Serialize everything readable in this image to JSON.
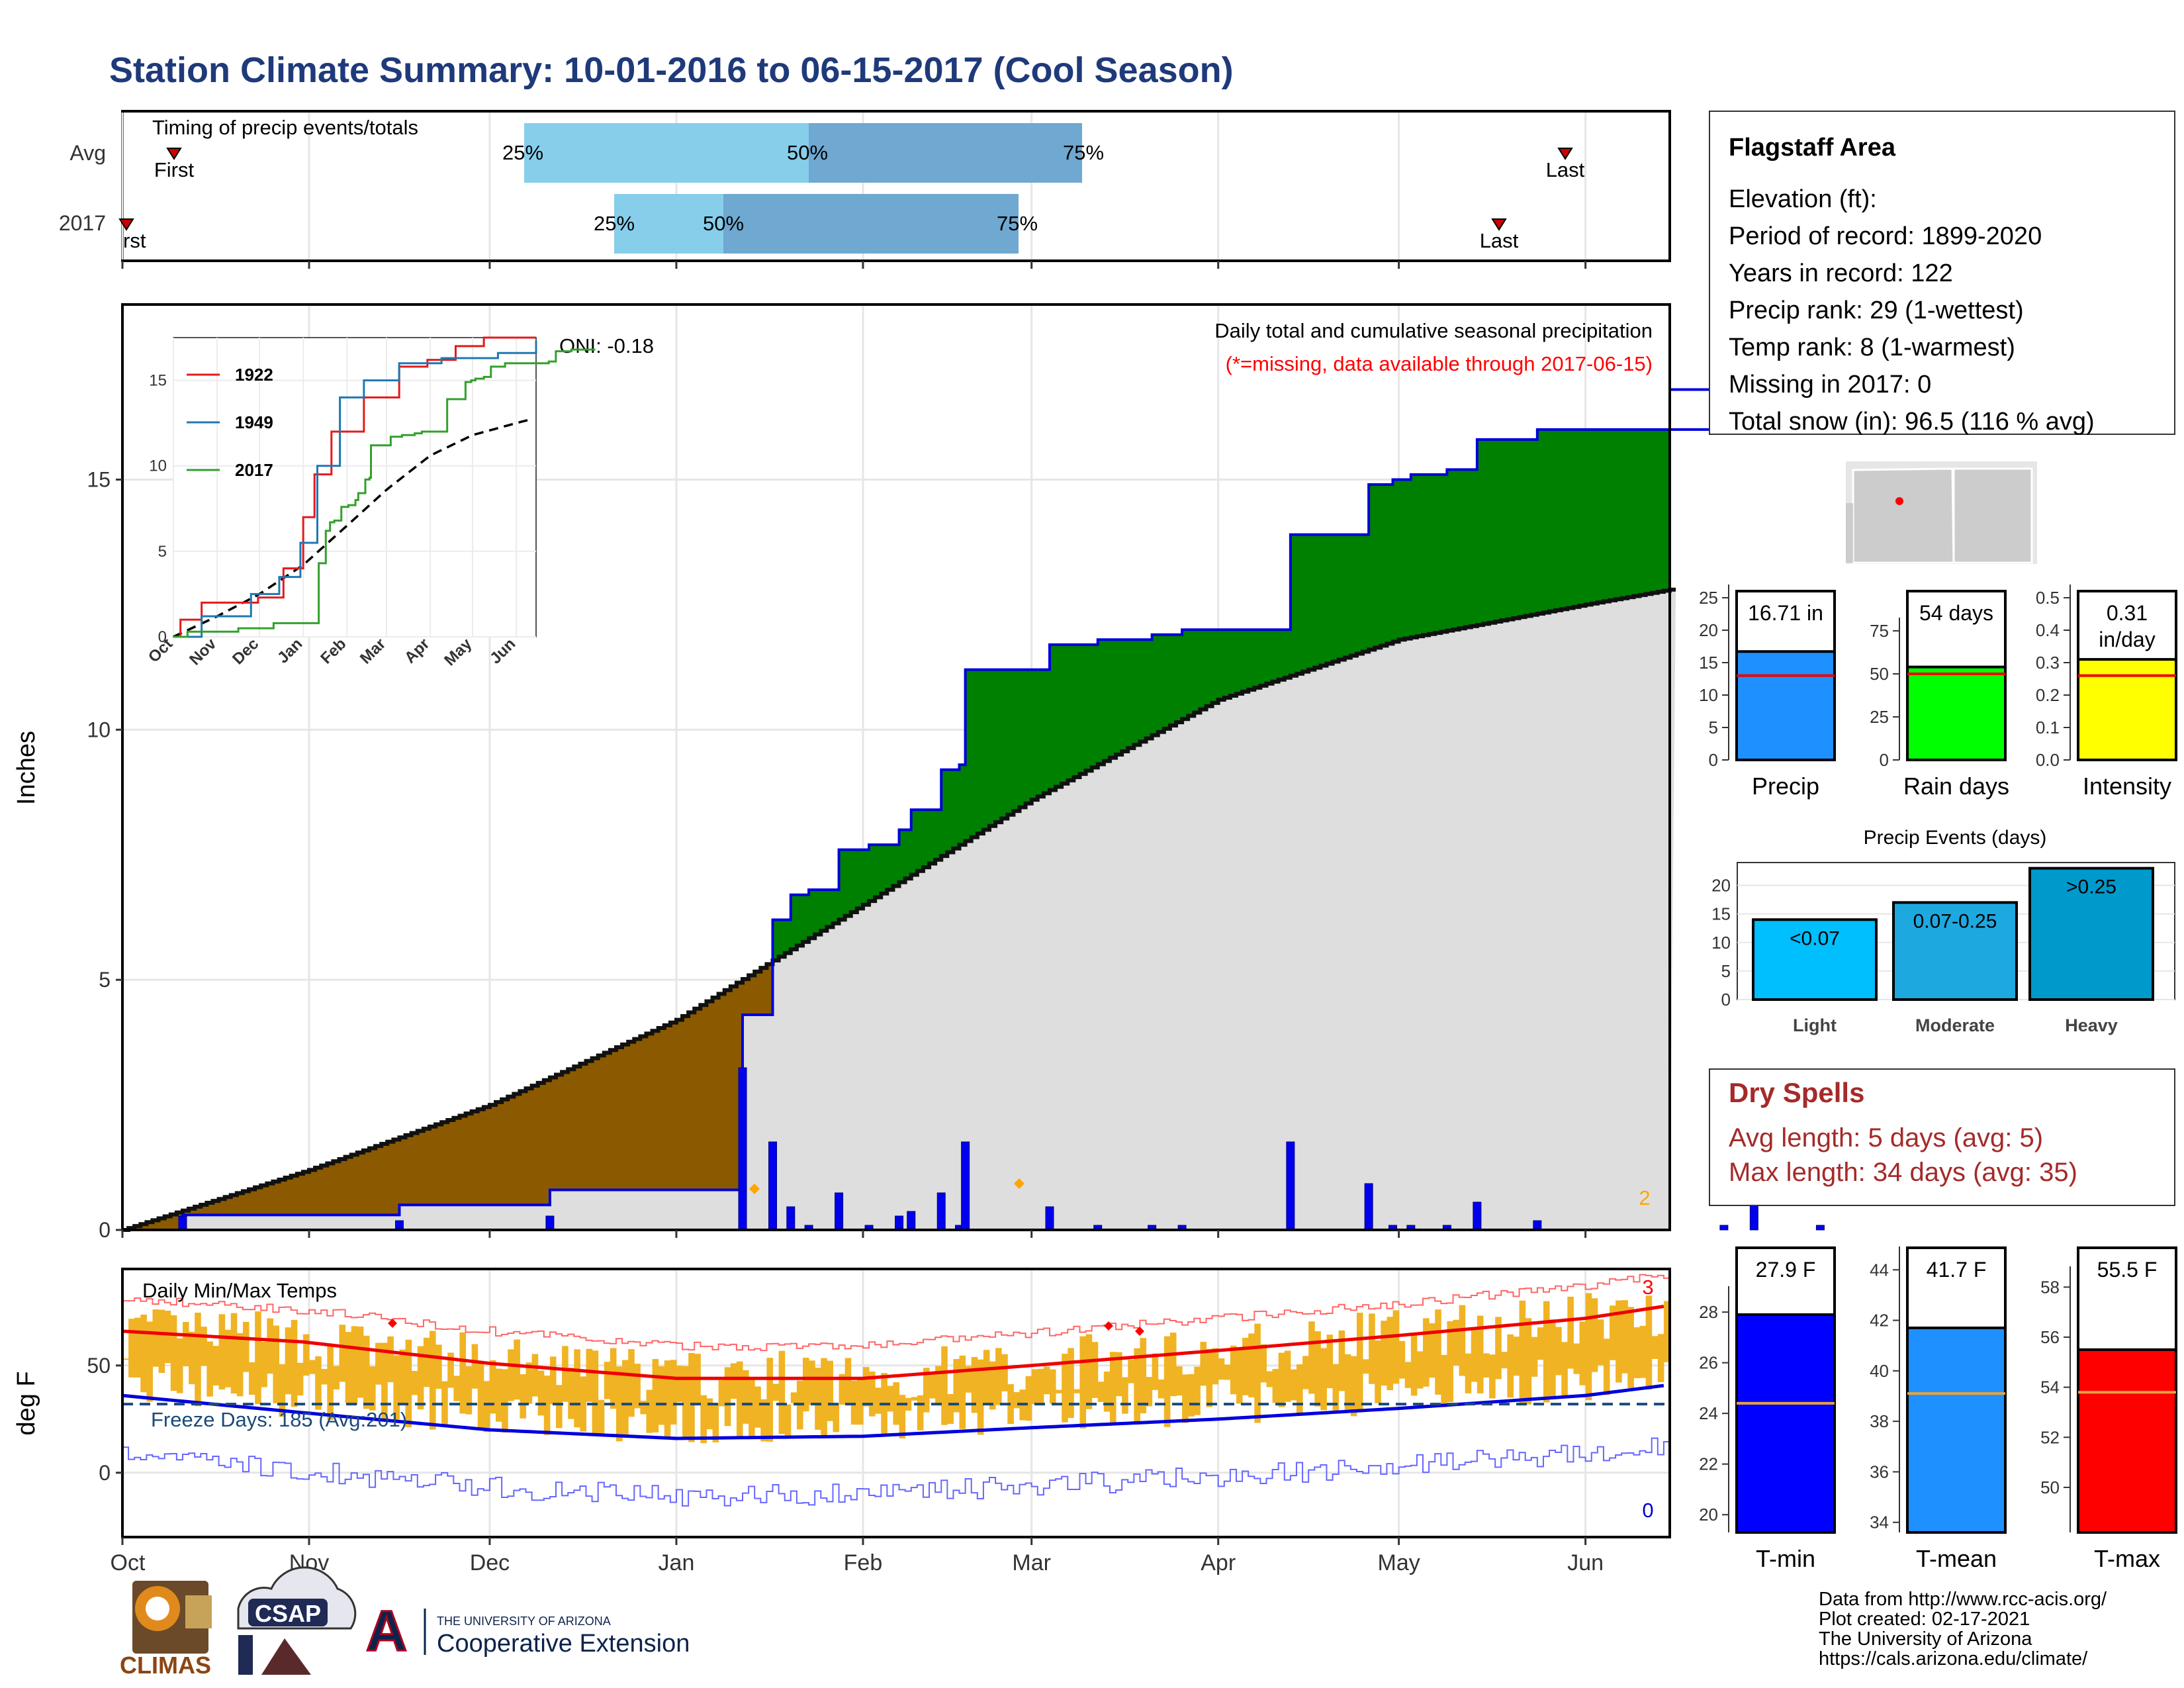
{
  "title": "Station Climate Summary: 10-01-2016 to 06-15-2017 (Cool Season)",
  "months": [
    "Oct",
    "Nov",
    "Dec",
    "Jan",
    "Feb",
    "Mar",
    "Apr",
    "May",
    "Jun"
  ],
  "timing": {
    "label": "Timing of precip events/totals",
    "rows": [
      "Avg",
      "2017"
    ],
    "first_label": "First",
    "first_label_clipped": "rst",
    "last_label": "Last",
    "pct": [
      "25%",
      "50%",
      "75%"
    ]
  },
  "precip_panel": {
    "ylabel": "Inches",
    "yticks": [
      "0",
      "5",
      "10",
      "15"
    ],
    "caption": "Daily total and cumulative seasonal precipitation",
    "missing_note": "(*=missing, data available through 2017-06-15)",
    "oni": "ONI: -0.18",
    "corner_count": "2",
    "inset": {
      "months": [
        "Oct",
        "Nov",
        "Dec",
        "Jan",
        "Feb",
        "Mar",
        "Apr",
        "May",
        "Jun"
      ],
      "yticks": [
        "0",
        "5",
        "10",
        "15"
      ],
      "legend": [
        {
          "name": "1922",
          "color": "#e31a1c"
        },
        {
          "name": "1949",
          "color": "#1f78b4"
        },
        {
          "name": "2017",
          "color": "#33a02c"
        }
      ]
    }
  },
  "temp_panel": {
    "ylabel": "deg F",
    "label": "Daily Min/Max Temps",
    "freeze": "Freeze Days: 185 (Avg:201)",
    "yticks": [
      "0",
      "50"
    ],
    "count_top": "3",
    "count_bottom": "0"
  },
  "info": {
    "station": "Flagstaff Area",
    "lines": [
      "Elevation (ft):",
      "Period of record: 1899-2020",
      "Years in record: 122",
      "Precip rank: 29 (1-wettest)",
      "Temp rank: 8 (1-warmest)",
      "Missing in 2017: 0",
      "Total snow (in): 96.5 (116 % avg)"
    ]
  },
  "bars": {
    "precip": {
      "label": "Precip",
      "value_text": "16.71 in",
      "yticks": [
        "0",
        "5",
        "10",
        "15",
        "20",
        "25"
      ]
    },
    "rain": {
      "label": "Rain days",
      "value_text": "54 days",
      "yticks": [
        "0",
        "25",
        "50",
        "75"
      ]
    },
    "intensity": {
      "label": "Intensity",
      "value_text_1": "0.31",
      "value_text_2": "in/day",
      "yticks": [
        "0.0",
        "0.1",
        "0.2",
        "0.3",
        "0.4",
        "0.5"
      ]
    }
  },
  "events": {
    "title": "Precip Events (days)",
    "categories": [
      "Light",
      "Moderate",
      "Heavy"
    ],
    "labels": [
      "<0.07",
      "0.07-0.25",
      ">0.25"
    ],
    "yticks": [
      "0",
      "5",
      "10",
      "15",
      "20"
    ]
  },
  "dry": {
    "title": "Dry Spells",
    "avg": "Avg length: 5 days (avg: 5)",
    "max": "Max length: 34 days (avg: 35)"
  },
  "temps": {
    "tmin": {
      "label": "T-min",
      "value_text": "27.9 F",
      "yticks": [
        "20",
        "22",
        "24",
        "26",
        "28"
      ]
    },
    "tmean": {
      "label": "T-mean",
      "value_text": "41.7 F",
      "yticks": [
        "34",
        "36",
        "38",
        "40",
        "42",
        "44"
      ]
    },
    "tmax": {
      "label": "T-max",
      "value_text": "55.5 F",
      "yticks": [
        "50",
        "52",
        "54",
        "56",
        "58"
      ]
    }
  },
  "credits": [
    "Data from http://www.rcc-acis.org/",
    "Plot created: 02-17-2021",
    "The University of Arizona",
    "https://cals.arizona.edu/climate/"
  ],
  "logos": {
    "climas": "CLIMAS",
    "csap": "CSAP",
    "ua_top": "THE UNIVERSITY OF ARIZONA",
    "ua_bottom": "Cooperative Extension",
    "ua_mark": "A"
  },
  "chart_data": [
    {
      "type": "area",
      "title": "Daily total and cumulative seasonal precipitation",
      "ylabel": "Inches",
      "ylim": [
        0,
        18.5
      ],
      "x_unit": "day of season (day 0 = Oct 1)",
      "series": [
        {
          "name": "2017",
          "x": [
            0,
            10,
            31,
            46,
            61,
            71,
            92,
            101,
            103,
            108,
            111,
            114,
            119,
            124,
            129,
            131,
            136,
            139,
            140,
            154,
            161,
            162,
            171,
            176,
            188,
            194,
            202,
            207,
            211,
            214,
            220,
            225,
            235,
            264,
            266,
            271,
            282,
            287,
            299
          ],
          "values": [
            0,
            0.3,
            0.3,
            0.5,
            0.5,
            0.8,
            0.8,
            0.8,
            4.3,
            6.2,
            6.7,
            6.8,
            7.6,
            7.7,
            8.0,
            8.4,
            9.2,
            9.3,
            11.2,
            11.7,
            11.7,
            11.8,
            11.9,
            12.0,
            12.0,
            13.9,
            13.9,
            14.9,
            15.0,
            15.1,
            15.2,
            15.8,
            16.0,
            16.0,
            16.1,
            16.7,
            16.8,
            16.8,
            16.8
          ]
        },
        {
          "name": "Avg",
          "x": [
            0,
            31,
            61,
            92,
            123,
            151,
            182,
            212,
            243,
            257
          ],
          "values": [
            0,
            1.2,
            2.5,
            4.2,
            6.5,
            8.6,
            10.6,
            11.8,
            12.5,
            12.8
          ]
        }
      ]
    },
    {
      "type": "line",
      "title": "Daily Min/Max Temps",
      "ylabel": "deg F",
      "series": [
        {
          "name": "Avg max",
          "x": [
            0,
            30,
            61,
            92,
            123,
            151,
            182,
            212,
            243,
            257
          ],
          "values": [
            66,
            61,
            51,
            44,
            44,
            50,
            57,
            64,
            72,
            78
          ]
        },
        {
          "name": "Avg min",
          "x": [
            0,
            30,
            61,
            92,
            123,
            151,
            182,
            212,
            243,
            257
          ],
          "values": [
            36,
            28,
            20,
            16,
            17,
            21,
            25,
            30,
            36,
            41
          ]
        }
      ]
    },
    {
      "type": "bar",
      "title": "Precip Events (days)",
      "categories": [
        "Light",
        "Moderate",
        "Heavy"
      ],
      "values": [
        14,
        17,
        23
      ]
    },
    {
      "type": "bar",
      "categories": [
        "Precip",
        "Rain days",
        "Intensity"
      ],
      "values": [
        16.71,
        54,
        0.31
      ],
      "averages": [
        13.0,
        50,
        0.26
      ]
    },
    {
      "type": "bar",
      "categories": [
        "T-min",
        "T-mean",
        "T-max"
      ],
      "values": [
        27.9,
        41.7,
        55.5
      ],
      "averages": [
        24.4,
        39.1,
        53.8
      ]
    }
  ]
}
